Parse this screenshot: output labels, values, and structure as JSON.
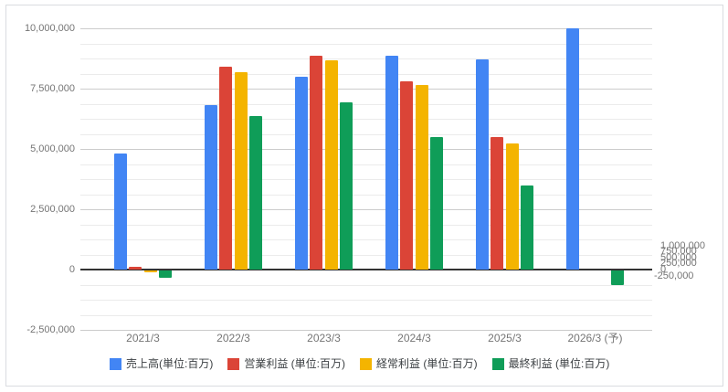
{
  "chart_data": {
    "type": "bar",
    "subtype": "grouped-dual-axis",
    "title": "",
    "categories": [
      "2021/3",
      "2022/3",
      "2023/3",
      "2024/3",
      "2025/3",
      "2026/3 (予)"
    ],
    "series": [
      {
        "name": "売上高(単位:百万)",
        "color": "#4285f4",
        "axis": "left",
        "values": [
          4830000,
          6810000,
          7980000,
          8870000,
          8700000,
          10000000
        ]
      },
      {
        "name": "営業利益 (単位:百万)",
        "color": "#db4437",
        "axis": "right",
        "values": [
          11000,
          841000,
          886000,
          781000,
          548000,
          null
        ]
      },
      {
        "name": "経常利益 (単位:百万)",
        "color": "#f4b400",
        "axis": "right",
        "values": [
          -8000,
          818000,
          869000,
          767000,
          522000,
          null
        ]
      },
      {
        "name": "最終利益 (単位:百万)",
        "color": "#0f9d58",
        "axis": "right",
        "values": [
          -32000,
          637000,
          694000,
          550000,
          350000,
          -60000
        ]
      }
    ],
    "left_axis": {
      "range": [
        -2500000,
        10000000
      ],
      "tick_values": [
        10000000,
        7500000,
        5000000,
        2500000,
        0,
        -2500000
      ],
      "tick_labels": [
        "10,000,000",
        "7,500,000",
        "5,000,000",
        "2,500,000",
        "0",
        "-2,500,000"
      ]
    },
    "right_axis": {
      "range": [
        -250000,
        1000000
      ],
      "tick_values": [
        1000000,
        750000,
        500000,
        250000,
        0,
        -250000
      ],
      "tick_labels": [
        "1,000,000",
        "750,000",
        "500,000",
        "250,000",
        "0",
        "-250,000"
      ]
    },
    "grid": {
      "major": true,
      "minor": true,
      "minor_per_major": 4
    },
    "legend_position": "bottom",
    "colors": {
      "major_grid": "#cccccc",
      "minor_grid": "#ebebeb",
      "zero_line": "#333333",
      "axis_text": "#757575",
      "legend_text": "#3c4043",
      "card_border": "#dadce0",
      "background": "#ffffff"
    }
  }
}
